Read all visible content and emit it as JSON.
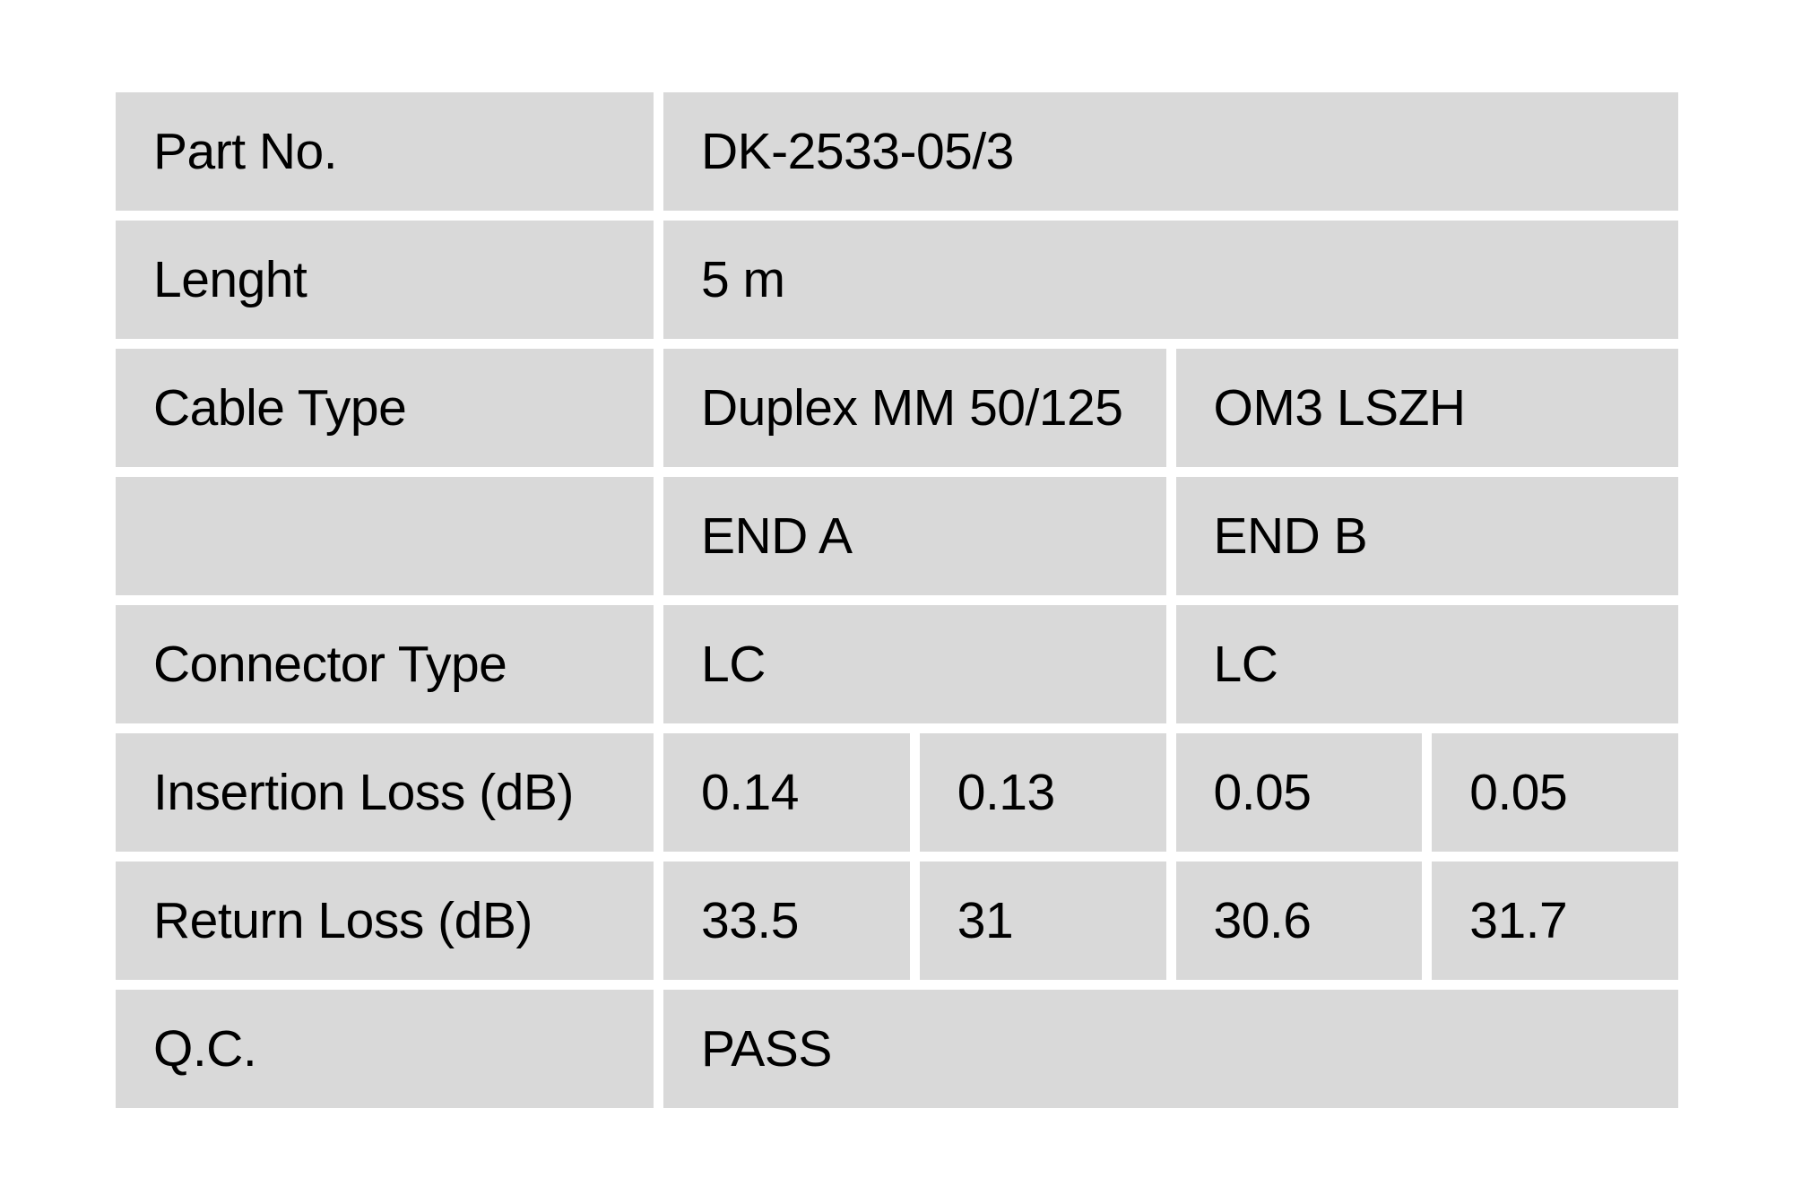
{
  "page": {
    "background_color": "#ffffff",
    "cell_color": "#d9d9d9",
    "text_color": "#000000"
  },
  "table": {
    "title": "fiber-patch-cable-qc-spec",
    "rows": [
      {
        "label": "Part No.",
        "cells": [
          {
            "text": "DK-2533-05/3",
            "span": 4
          }
        ]
      },
      {
        "label": "Lenght",
        "cells": [
          {
            "text": "5 m",
            "span": 4
          }
        ]
      },
      {
        "label": "Cable Type",
        "cells": [
          {
            "text": "Duplex MM 50/125",
            "span": 2
          },
          {
            "text": "OM3 LSZH",
            "span": 2
          }
        ]
      },
      {
        "label": "",
        "cells": [
          {
            "text": "END A",
            "span": 2
          },
          {
            "text": "END B",
            "span": 2
          }
        ]
      },
      {
        "label": "Connector Type",
        "cells": [
          {
            "text": "LC",
            "span": 2
          },
          {
            "text": "LC",
            "span": 2
          }
        ]
      },
      {
        "label": "Insertion Loss (dB)",
        "cells": [
          {
            "text": "0.14",
            "span": 1
          },
          {
            "text": "0.13",
            "span": 1
          },
          {
            "text": "0.05",
            "span": 1
          },
          {
            "text": "0.05",
            "span": 1
          }
        ]
      },
      {
        "label": "Return Loss (dB)",
        "cells": [
          {
            "text": "33.5",
            "span": 1
          },
          {
            "text": "31",
            "span": 1
          },
          {
            "text": "30.6",
            "span": 1
          },
          {
            "text": "31.7",
            "span": 1
          }
        ]
      },
      {
        "label": "Q.C.",
        "cells": [
          {
            "text": "PASS",
            "span": 4
          }
        ]
      }
    ]
  }
}
